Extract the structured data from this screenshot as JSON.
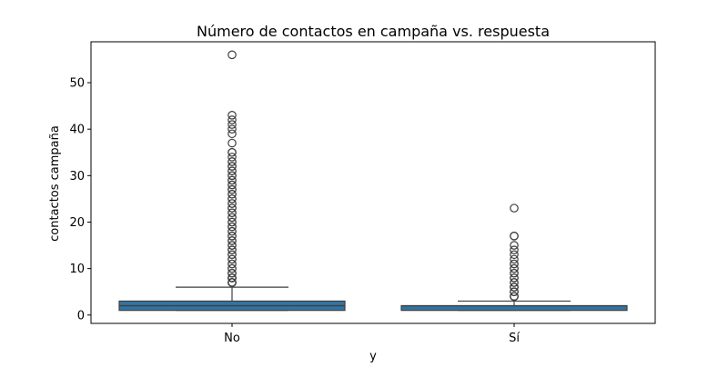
{
  "chart_data": {
    "type": "box",
    "title": "Número de contactos en campaña vs. respuesta",
    "xlabel": "y",
    "ylabel": "contactos campaña",
    "categories": [
      "No",
      "Sí"
    ],
    "ylim": [
      -1.8,
      58.8
    ],
    "yticks": [
      0,
      10,
      20,
      30,
      40,
      50
    ],
    "grid": false,
    "box_color": "#3274a1",
    "boxes": [
      {
        "category": "No",
        "whisker_low": 1,
        "q1": 1,
        "median": 2,
        "q3": 3,
        "whisker_high": 6,
        "outliers": [
          7,
          7,
          7,
          7,
          7,
          7,
          8,
          8,
          8,
          8,
          8,
          8,
          9,
          9,
          9,
          10,
          10,
          11,
          11,
          12,
          12,
          13,
          13,
          14,
          14,
          15,
          15,
          16,
          16,
          17,
          17,
          18,
          18,
          19,
          19,
          20,
          20,
          21,
          21,
          22,
          22,
          23,
          23,
          24,
          24,
          25,
          25,
          26,
          26,
          27,
          27,
          28,
          28,
          29,
          29,
          30,
          30,
          31,
          31,
          32,
          32,
          33,
          33,
          34,
          35,
          35,
          37,
          39,
          40,
          41,
          42,
          43,
          56
        ]
      },
      {
        "category": "Sí",
        "whisker_low": 1,
        "q1": 1,
        "median": 2,
        "q3": 2,
        "whisker_high": 3,
        "outliers": [
          4,
          4,
          4,
          4,
          5,
          5,
          5,
          6,
          6,
          6,
          7,
          7,
          8,
          8,
          9,
          9,
          10,
          10,
          11,
          11,
          12,
          13,
          14,
          15,
          17,
          17,
          23
        ]
      }
    ]
  }
}
